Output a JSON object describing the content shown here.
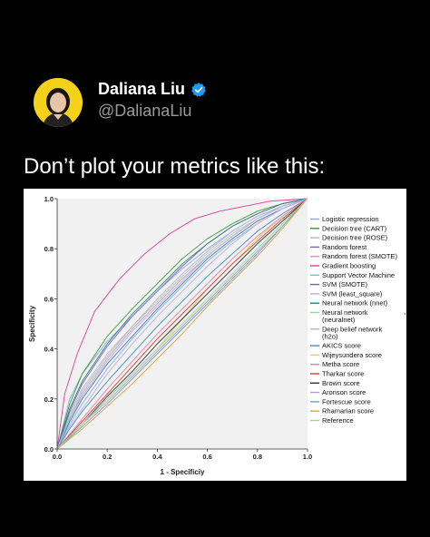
{
  "author": {
    "display_name": "Daliana Liu",
    "handle": "@DalianaLiu",
    "verified": true,
    "verified_icon": "verified-badge-icon",
    "avatar_color": "#f4d21a"
  },
  "tweet": {
    "text": "Don’t plot your metrics like this:"
  },
  "chart_data": {
    "type": "line",
    "xlabel": "1 - Specificiy",
    "ylabel": "Specificity",
    "xlim": [
      0,
      1
    ],
    "ylim": [
      0,
      1
    ],
    "x_ticks": [
      "0.0",
      "0.2",
      "0.4",
      "0.6",
      "0.8",
      "1.0"
    ],
    "y_ticks": [
      "0.0",
      "0.2",
      "0.4",
      "0.6",
      "0.8",
      "1.0"
    ],
    "grid": false,
    "legend_position": "right",
    "series": [
      {
        "name": "Logistic regression",
        "color": "#8fa8d8",
        "x": [
          0,
          0.05,
          0.1,
          0.2,
          0.3,
          0.4,
          0.5,
          0.6,
          0.7,
          0.8,
          0.9,
          1
        ],
        "y": [
          0,
          0.2,
          0.3,
          0.43,
          0.53,
          0.63,
          0.72,
          0.8,
          0.87,
          0.93,
          0.97,
          1
        ]
      },
      {
        "name": "Decision tree (CART)",
        "color": "#3a9a3a",
        "x": [
          0,
          0.05,
          0.1,
          0.2,
          0.3,
          0.4,
          0.5,
          0.6,
          0.7,
          0.8,
          0.9,
          1
        ],
        "y": [
          0,
          0.18,
          0.3,
          0.45,
          0.56,
          0.66,
          0.76,
          0.84,
          0.9,
          0.95,
          0.98,
          1
        ]
      },
      {
        "name": "Decision tree (ROSE)",
        "color": "#b9b0d8",
        "x": [
          0,
          0.05,
          0.1,
          0.2,
          0.3,
          0.4,
          0.5,
          0.6,
          0.7,
          0.8,
          0.9,
          1
        ],
        "y": [
          0,
          0.14,
          0.24,
          0.38,
          0.49,
          0.6,
          0.7,
          0.79,
          0.87,
          0.93,
          0.97,
          1
        ]
      },
      {
        "name": "Random forest",
        "color": "#7a6ab0",
        "x": [
          0,
          0.05,
          0.1,
          0.2,
          0.3,
          0.4,
          0.5,
          0.6,
          0.7,
          0.8,
          0.9,
          1
        ],
        "y": [
          0,
          0.15,
          0.26,
          0.41,
          0.53,
          0.63,
          0.73,
          0.82,
          0.89,
          0.94,
          0.98,
          1
        ]
      },
      {
        "name": "Random forest (SMOTE)",
        "color": "#e08ad0",
        "x": [
          0,
          0.05,
          0.1,
          0.2,
          0.3,
          0.4,
          0.5,
          0.6,
          0.7,
          0.8,
          0.9,
          1
        ],
        "y": [
          0,
          0.12,
          0.22,
          0.36,
          0.48,
          0.58,
          0.68,
          0.77,
          0.85,
          0.92,
          0.97,
          1
        ]
      },
      {
        "name": "Gradient boosting",
        "color": "#d6409a",
        "x": [
          0,
          0.03,
          0.08,
          0.15,
          0.25,
          0.35,
          0.45,
          0.55,
          0.65,
          0.75,
          0.85,
          1
        ],
        "y": [
          0,
          0.22,
          0.38,
          0.55,
          0.68,
          0.78,
          0.86,
          0.92,
          0.95,
          0.97,
          0.99,
          1
        ]
      },
      {
        "name": "Support Vector Machine",
        "color": "#6fc0d8",
        "x": [
          0,
          0.05,
          0.1,
          0.2,
          0.3,
          0.4,
          0.5,
          0.6,
          0.7,
          0.8,
          0.9,
          1
        ],
        "y": [
          0,
          0.1,
          0.18,
          0.32,
          0.44,
          0.55,
          0.65,
          0.75,
          0.83,
          0.9,
          0.96,
          1
        ]
      },
      {
        "name": "SVM (SMOTE)",
        "color": "#5a6fb8",
        "x": [
          0,
          0.05,
          0.1,
          0.2,
          0.3,
          0.4,
          0.5,
          0.6,
          0.7,
          0.8,
          0.9,
          1
        ],
        "y": [
          0,
          0.11,
          0.2,
          0.34,
          0.45,
          0.56,
          0.66,
          0.76,
          0.84,
          0.91,
          0.96,
          1
        ]
      },
      {
        "name": "SVM (least_square)",
        "color": "#c8a8e0",
        "x": [
          0,
          0.05,
          0.1,
          0.2,
          0.3,
          0.4,
          0.5,
          0.6,
          0.7,
          0.8,
          0.9,
          1
        ],
        "y": [
          0,
          0.09,
          0.16,
          0.3,
          0.42,
          0.53,
          0.63,
          0.73,
          0.82,
          0.9,
          0.96,
          1
        ]
      },
      {
        "name": "Neural network (nnet)",
        "color": "#2f7f7f",
        "x": [
          0,
          0.05,
          0.1,
          0.2,
          0.3,
          0.4,
          0.5,
          0.6,
          0.7,
          0.8,
          0.9,
          1
        ],
        "y": [
          0,
          0.16,
          0.27,
          0.42,
          0.54,
          0.64,
          0.74,
          0.82,
          0.89,
          0.94,
          0.98,
          1
        ]
      },
      {
        "name": "Neural network (neuralnet)",
        "color": "#9fd0a0",
        "x": [
          0,
          0.05,
          0.1,
          0.2,
          0.3,
          0.4,
          0.5,
          0.6,
          0.7,
          0.8,
          0.9,
          1
        ],
        "y": [
          0,
          0.13,
          0.23,
          0.37,
          0.49,
          0.59,
          0.69,
          0.78,
          0.86,
          0.92,
          0.97,
          1
        ]
      },
      {
        "name": "Deep belief network (h2o)",
        "color": "#a0b8e8",
        "x": [
          0,
          0.05,
          0.1,
          0.2,
          0.3,
          0.4,
          0.5,
          0.6,
          0.7,
          0.8,
          0.9,
          1
        ],
        "y": [
          0,
          0.12,
          0.21,
          0.35,
          0.47,
          0.57,
          0.67,
          0.77,
          0.85,
          0.92,
          0.97,
          1
        ]
      },
      {
        "name": "AKICS score",
        "color": "#3a8fc8",
        "x": [
          0,
          0.05,
          0.1,
          0.2,
          0.3,
          0.4,
          0.5,
          0.6,
          0.7,
          0.8,
          0.9,
          1
        ],
        "y": [
          0,
          0.08,
          0.15,
          0.27,
          0.38,
          0.49,
          0.59,
          0.69,
          0.78,
          0.87,
          0.94,
          1
        ]
      },
      {
        "name": "Wijeysundera score",
        "color": "#e8c860",
        "x": [
          0,
          0.1,
          0.2,
          0.3,
          0.4,
          0.5,
          0.6,
          0.7,
          0.8,
          0.9,
          1
        ],
        "y": [
          0,
          0.1,
          0.2,
          0.3,
          0.4,
          0.52,
          0.64,
          0.74,
          0.84,
          0.93,
          1
        ]
      },
      {
        "name": "Metha score",
        "color": "#f080a0",
        "x": [
          0,
          0.1,
          0.2,
          0.3,
          0.4,
          0.5,
          0.6,
          0.7,
          0.8,
          0.9,
          1
        ],
        "y": [
          0,
          0.12,
          0.24,
          0.35,
          0.46,
          0.56,
          0.66,
          0.76,
          0.85,
          0.93,
          1
        ]
      },
      {
        "name": "Tharkar score",
        "color": "#c84040",
        "x": [
          0,
          0.1,
          0.2,
          0.3,
          0.4,
          0.5,
          0.6,
          0.7,
          0.8,
          0.9,
          1
        ],
        "y": [
          0,
          0.11,
          0.22,
          0.33,
          0.44,
          0.54,
          0.64,
          0.74,
          0.83,
          0.92,
          1
        ]
      },
      {
        "name": "Brown score",
        "color": "#333333",
        "x": [
          0,
          0.1,
          0.2,
          0.3,
          0.4,
          0.5,
          0.6,
          0.7,
          0.8,
          0.9,
          1
        ],
        "y": [
          0,
          0.1,
          0.21,
          0.31,
          0.42,
          0.52,
          0.62,
          0.72,
          0.82,
          0.91,
          1
        ]
      },
      {
        "name": "Aronson score",
        "color": "#b0a0c8",
        "x": [
          0,
          0.1,
          0.2,
          0.3,
          0.4,
          0.5,
          0.6,
          0.7,
          0.8,
          0.9,
          1
        ],
        "y": [
          0,
          0.1,
          0.19,
          0.29,
          0.39,
          0.49,
          0.59,
          0.69,
          0.79,
          0.89,
          1
        ]
      },
      {
        "name": "Fortescue score",
        "color": "#70a0c0",
        "x": [
          0,
          0.1,
          0.2,
          0.3,
          0.4,
          0.5,
          0.6,
          0.7,
          0.8,
          0.9,
          1
        ],
        "y": [
          0,
          0.09,
          0.18,
          0.28,
          0.38,
          0.48,
          0.58,
          0.68,
          0.78,
          0.89,
          1
        ]
      },
      {
        "name": "Rhamarian score",
        "color": "#e0a040",
        "x": [
          0,
          0.1,
          0.2,
          0.3,
          0.4,
          0.5,
          0.6,
          0.7,
          0.8,
          0.9,
          1
        ],
        "y": [
          0,
          0.08,
          0.17,
          0.26,
          0.36,
          0.46,
          0.57,
          0.67,
          0.77,
          0.88,
          1
        ]
      },
      {
        "name": "Reference",
        "color": "#9ad89a",
        "x": [
          0,
          1
        ],
        "y": [
          0,
          1
        ]
      }
    ]
  }
}
